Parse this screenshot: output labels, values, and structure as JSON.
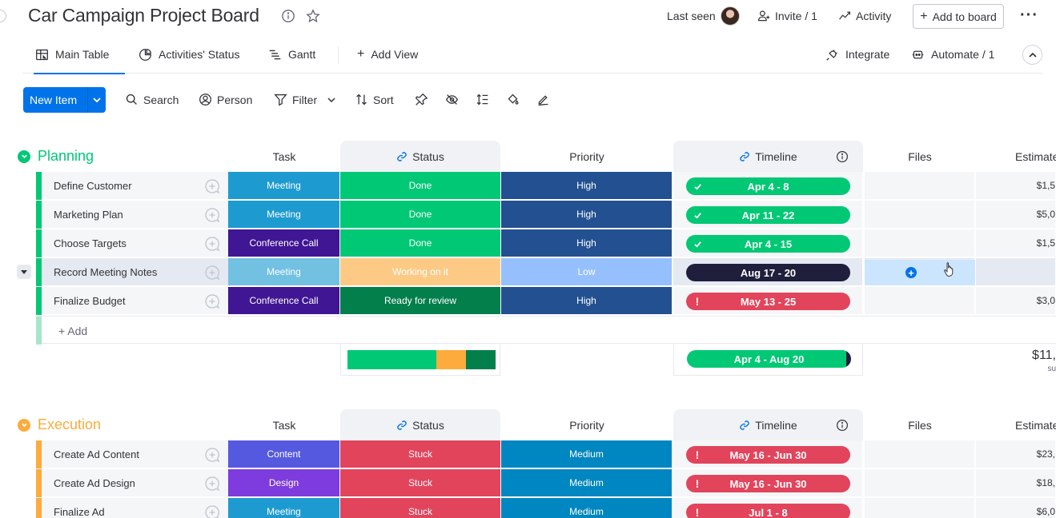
{
  "header": {
    "title": "Car Campaign Project Board",
    "last_seen": "Last seen",
    "invite": "Invite / 1",
    "activity": "Activity",
    "add_to_board": "Add to board"
  },
  "views": {
    "tabs": [
      "Main Table",
      "Activities' Status",
      "Gantt"
    ],
    "add_view": "Add View",
    "integrate": "Integrate",
    "automate": "Automate / 1"
  },
  "toolbar": {
    "new_item": "New Item",
    "search": "Search",
    "person": "Person",
    "filter": "Filter",
    "sort": "Sort"
  },
  "columns": {
    "task": "Task",
    "status": "Status",
    "priority": "Priority",
    "timeline": "Timeline",
    "files": "Files",
    "estimate": "Estimate"
  },
  "colors": {
    "planning": "#00c875",
    "execution": "#fdab3d",
    "meeting": "#1d9bd1",
    "conference": "#401694",
    "content": "#5559df",
    "design": "#7e3bdd",
    "done": "#00c875",
    "stuck": "#e2445c",
    "working": "#fdab3d",
    "review": "#037f4c",
    "high": "#225091",
    "low": "#579bfc",
    "medium": "#0086c0",
    "tl_green": "#00c875",
    "tl_dark": "#1f1f3d",
    "tl_red": "#e2445c"
  },
  "planning": {
    "title": "Planning",
    "add_label": "+ Add",
    "rows": [
      {
        "name": "Define Customer",
        "task": "Meeting",
        "status": "Done",
        "priority": "High",
        "timeline": "Apr 4 - 8",
        "estimate": "$1,5"
      },
      {
        "name": "Marketing Plan",
        "task": "Meeting",
        "status": "Done",
        "priority": "High",
        "timeline": "Apr 11 - 22",
        "estimate": "$5,0"
      },
      {
        "name": "Choose Targets",
        "task": "Conference Call",
        "status": "Done",
        "priority": "High",
        "timeline": "Apr 4 - 15",
        "estimate": "$1,5"
      },
      {
        "name": "Record Meeting Notes",
        "task": "Meeting",
        "status": "Working on it",
        "priority": "Low",
        "timeline": "Aug 17 - 20",
        "estimate": ""
      },
      {
        "name": "Finalize Budget",
        "task": "Conference Call",
        "status": "Ready for review",
        "priority": "High",
        "timeline": "May 13 - 25",
        "estimate": "$3,0"
      }
    ],
    "summary": {
      "status_distribution": [
        0.6,
        0.2,
        0.2
      ],
      "timeline": "Apr 4 - Aug 20",
      "estimate_sum": "$11,",
      "estimate_label": "su"
    }
  },
  "execution": {
    "title": "Execution",
    "rows": [
      {
        "name": "Create Ad Content",
        "task": "Content",
        "status": "Stuck",
        "priority": "Medium",
        "timeline": "May 16 - Jun 30",
        "estimate": "$23,"
      },
      {
        "name": "Create Ad Design",
        "task": "Design",
        "status": "Stuck",
        "priority": "Medium",
        "timeline": "May 16 - Jun 30",
        "estimate": "$18,"
      },
      {
        "name": "Finalize Ad",
        "task": "Meeting",
        "status": "Stuck",
        "priority": "Medium",
        "timeline": "Jul 1 - 8",
        "estimate": "$6,0"
      }
    ]
  }
}
